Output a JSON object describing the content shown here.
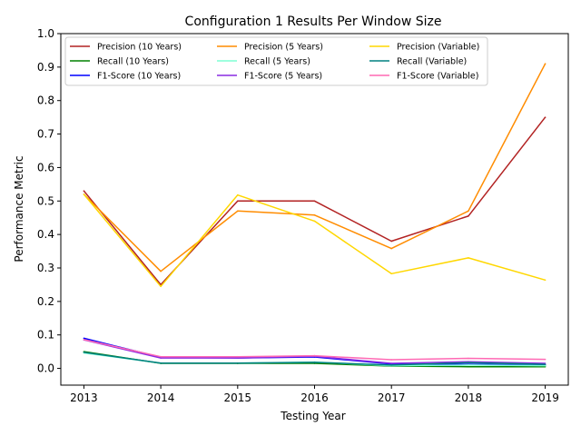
{
  "chart_data": {
    "type": "line",
    "title": "Configuration 1 Results Per Window Size",
    "xlabel": "Testing Year",
    "ylabel": "Performance Metric",
    "x": [
      2013,
      2014,
      2015,
      2016,
      2017,
      2018,
      2019
    ],
    "x_ticks": [
      "2013",
      "2014",
      "2015",
      "2016",
      "2017",
      "2018",
      "2019"
    ],
    "y_ticks": [
      "0.0",
      "0.1",
      "0.2",
      "0.3",
      "0.4",
      "0.5",
      "0.6",
      "0.7",
      "0.8",
      "0.9",
      "1.0"
    ],
    "xlim": [
      2012.7,
      2019.3
    ],
    "ylim": [
      -0.05,
      1.0
    ],
    "grid": false,
    "legend_position": "top-left",
    "legend_columns": 3,
    "series": [
      {
        "name": "Precision (10 Years)",
        "color": "#b22222",
        "values": [
          0.53,
          0.25,
          0.5,
          0.5,
          0.38,
          0.455,
          0.75
        ]
      },
      {
        "name": "Recall (10 Years)",
        "color": "#008000",
        "values": [
          0.05,
          0.015,
          0.015,
          0.015,
          0.007,
          0.005,
          0.005
        ]
      },
      {
        "name": "F1-Score (10 Years)",
        "color": "#0000ff",
        "values": [
          0.09,
          0.033,
          0.031,
          0.034,
          0.013,
          0.012,
          0.01
        ]
      },
      {
        "name": "Precision (5 Years)",
        "color": "#ff8c00",
        "values": [
          0.52,
          0.29,
          0.47,
          0.458,
          0.358,
          0.47,
          0.91
        ]
      },
      {
        "name": "Recall (5 Years)",
        "color": "#7fffd4",
        "values": [
          0.046,
          0.016,
          0.016,
          0.019,
          0.008,
          0.01,
          0.008
        ]
      },
      {
        "name": "F1-Score (5 Years)",
        "color": "#8a2be2",
        "values": [
          0.085,
          0.031,
          0.031,
          0.036,
          0.015,
          0.02,
          0.015
        ]
      },
      {
        "name": "Precision (Variable)",
        "color": "#ffd700",
        "values": [
          0.52,
          0.245,
          0.518,
          0.44,
          0.283,
          0.33,
          0.264
        ]
      },
      {
        "name": "Recall (Variable)",
        "color": "#008080",
        "values": [
          0.048,
          0.016,
          0.016,
          0.018,
          0.01,
          0.017,
          0.012
        ]
      },
      {
        "name": "F1-Score (Variable)",
        "color": "#ff69b4",
        "values": [
          0.086,
          0.035,
          0.035,
          0.038,
          0.026,
          0.03,
          0.027
        ]
      }
    ]
  }
}
